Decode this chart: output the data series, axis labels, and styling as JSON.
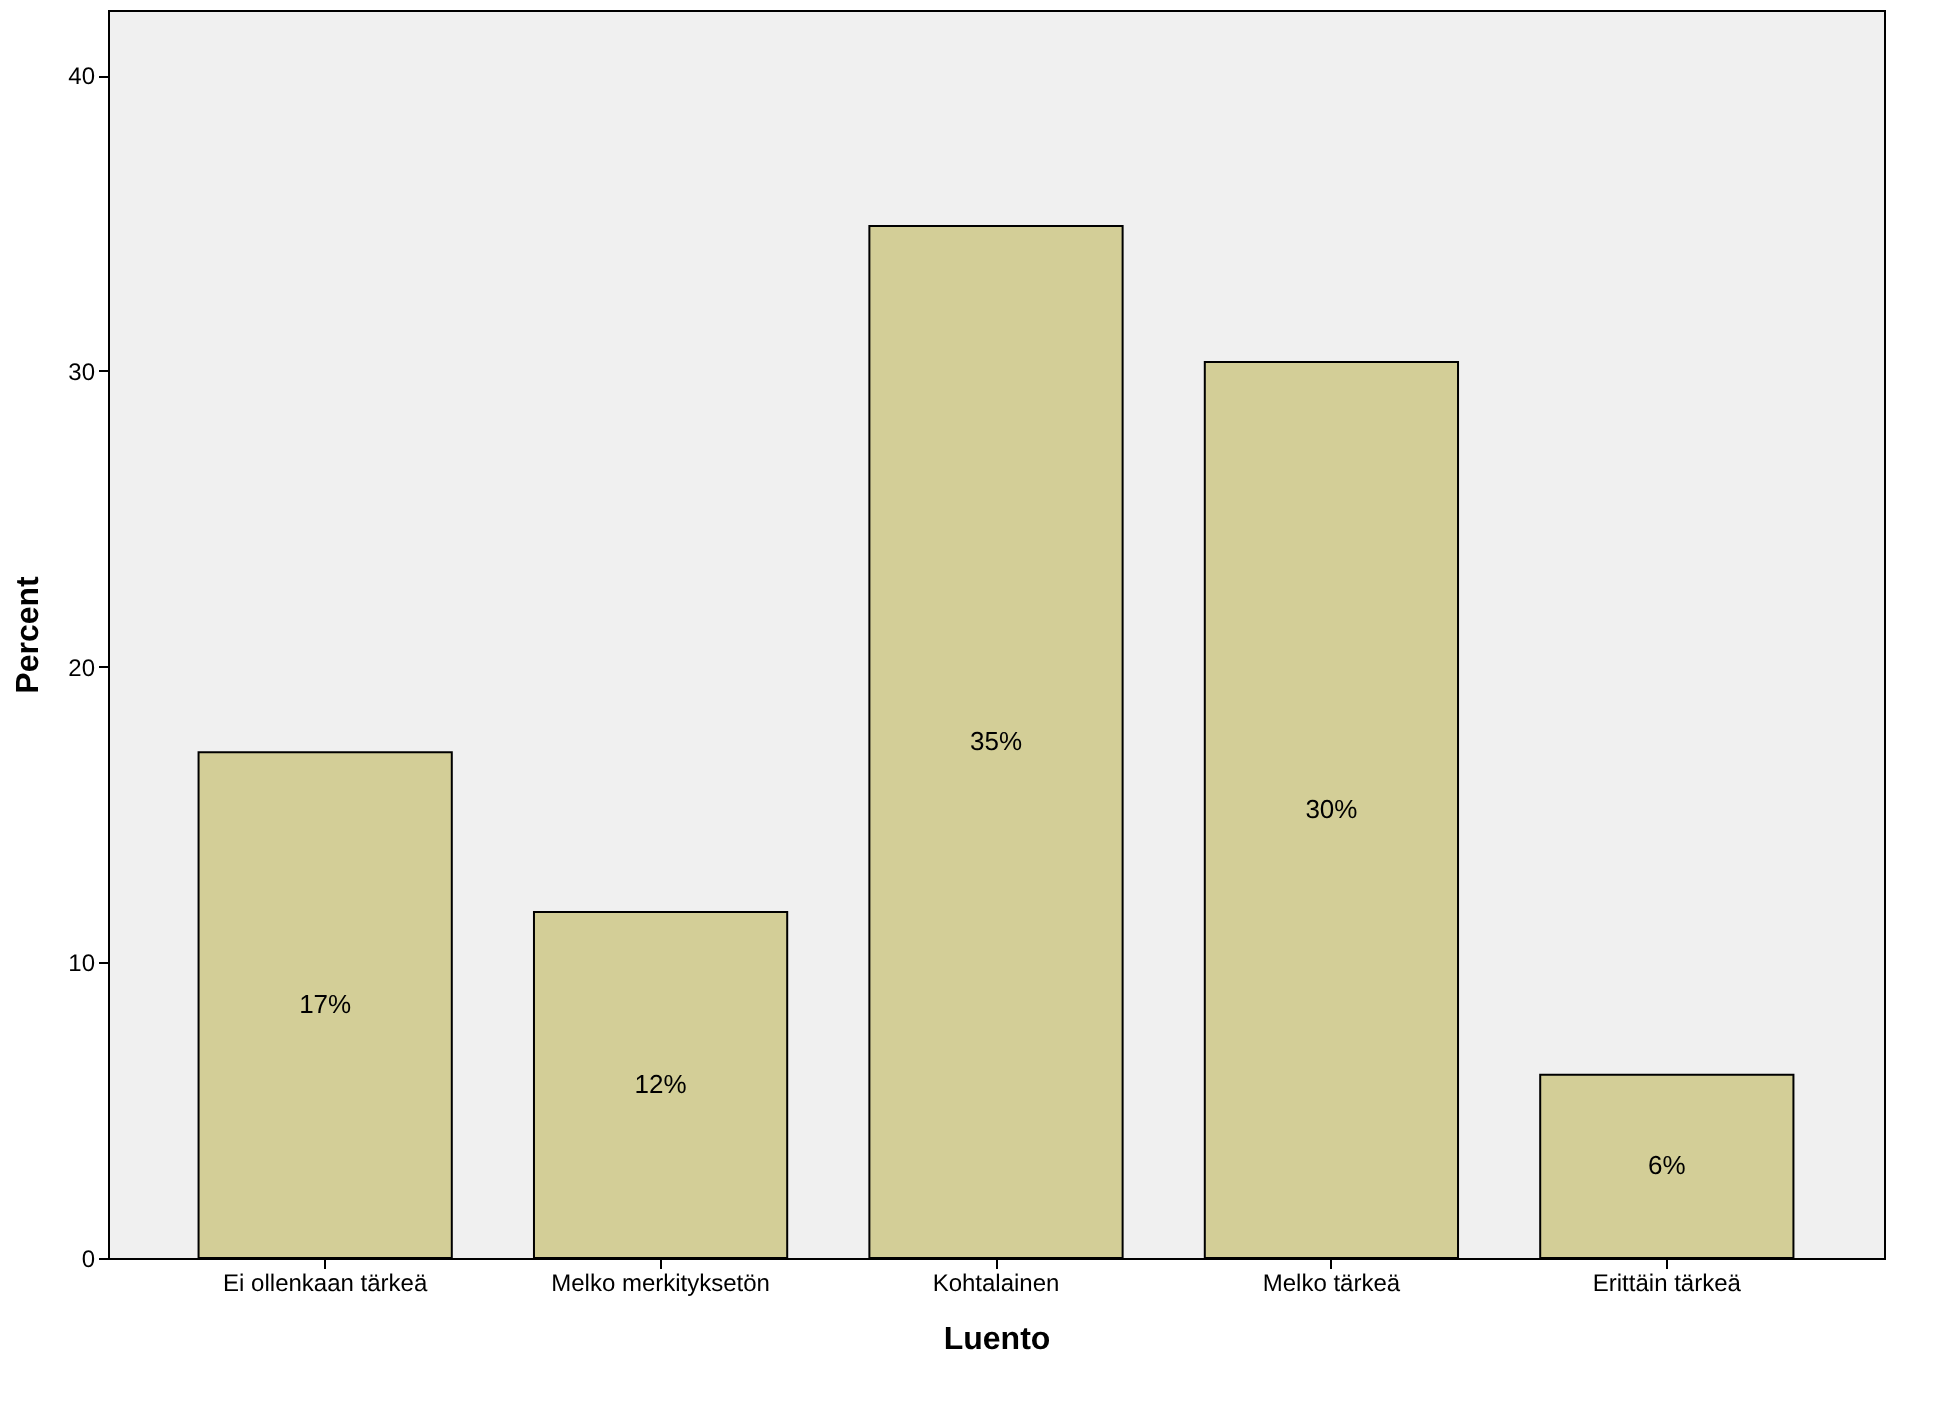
{
  "chart_data": {
    "type": "bar",
    "xlabel": "Luento",
    "ylabel": "Percent",
    "categories": [
      "Ei ollenkaan tärkeä",
      "Melko merkityksetön",
      "Kohtalainen",
      "Melko tärkeä",
      "Erittäin tärkeä"
    ],
    "values": [
      17.1,
      11.7,
      34.9,
      30.3,
      6.2
    ],
    "value_labels": [
      "17%",
      "12%",
      "35%",
      "30%",
      "6%"
    ],
    "color": "#d3ce97",
    "ylim": [
      0,
      42.2
    ],
    "yticks": [
      0,
      10,
      20,
      30,
      40
    ],
    "grid": false
  }
}
